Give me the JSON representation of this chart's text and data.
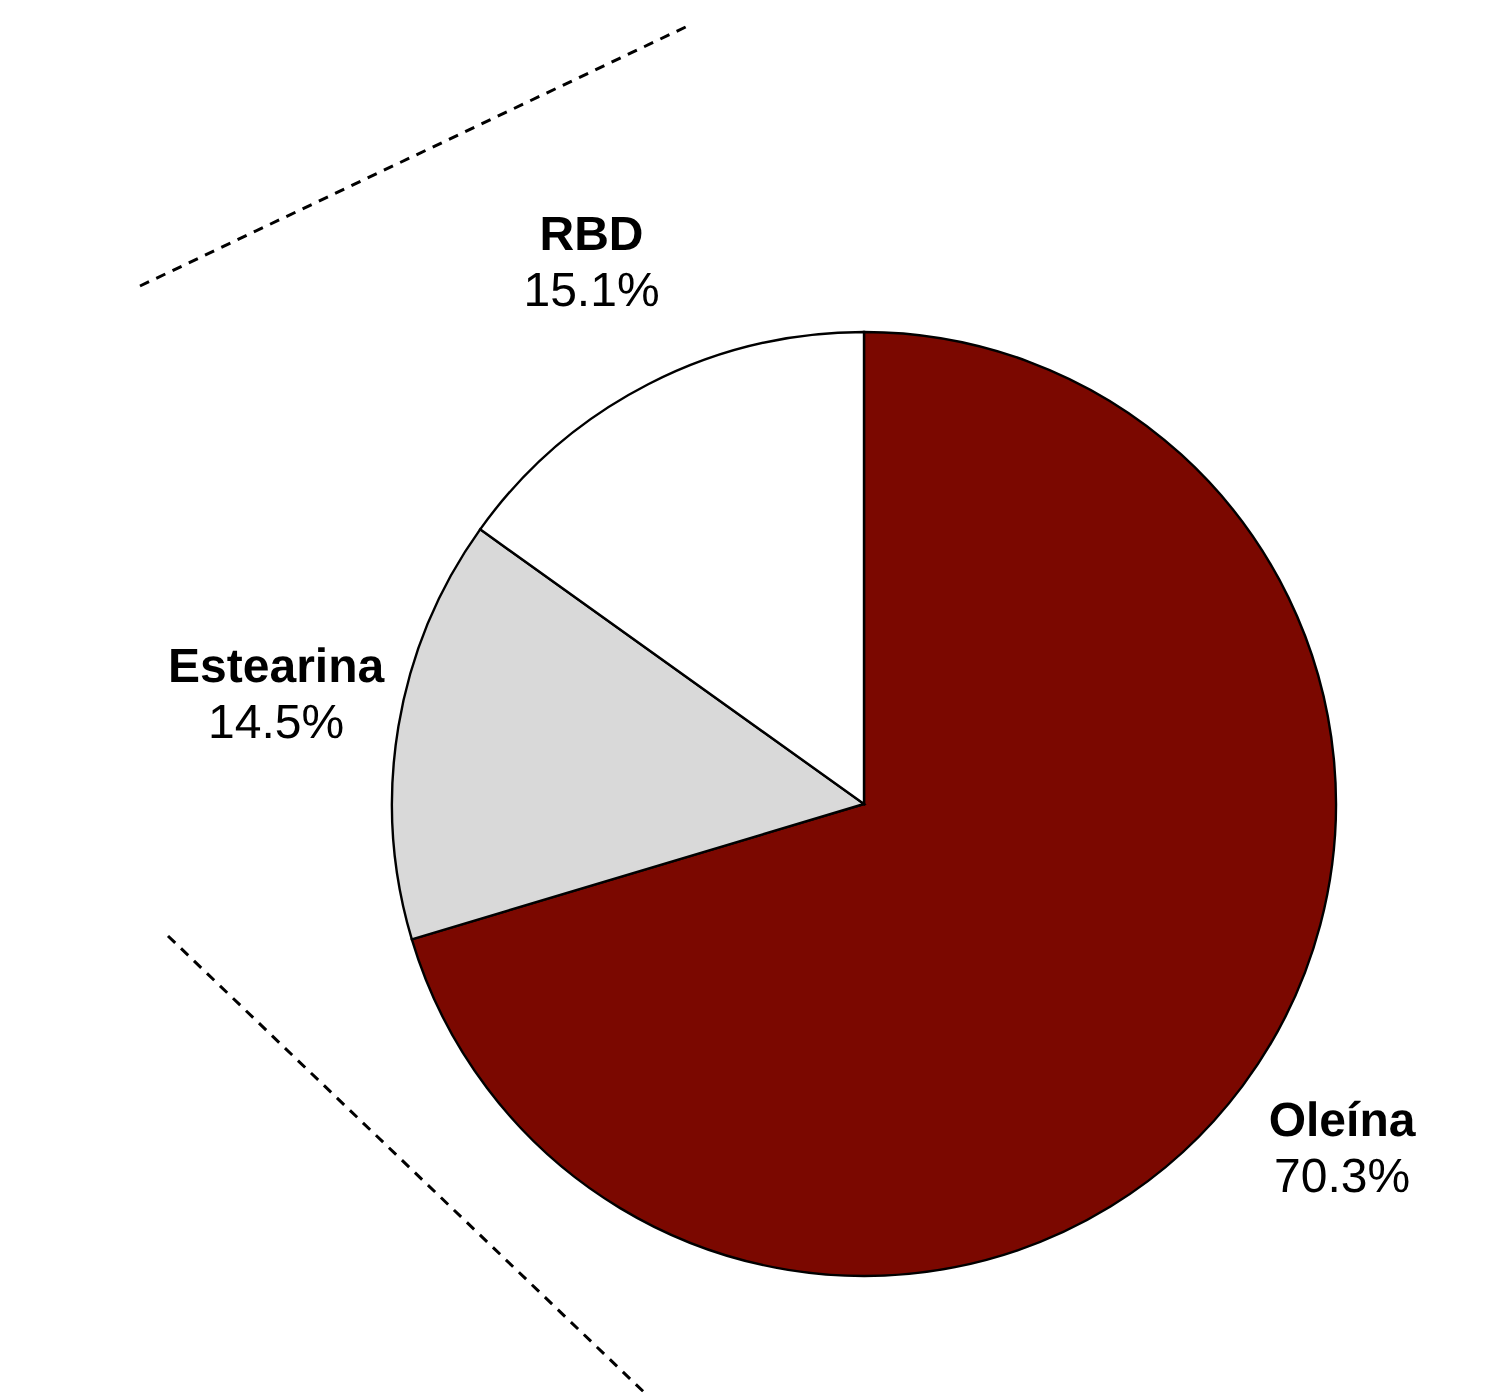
{
  "chart_data": {
    "type": "pie",
    "categories": [
      "Oleína",
      "Estearina",
      "RBD"
    ],
    "values": [
      70.3,
      14.5,
      15.1
    ],
    "colors": [
      "#7b0800",
      "#d9d9d9",
      "#ffffff"
    ],
    "value_labels": [
      "70.3%",
      "14.5%",
      "15.1%"
    ]
  }
}
